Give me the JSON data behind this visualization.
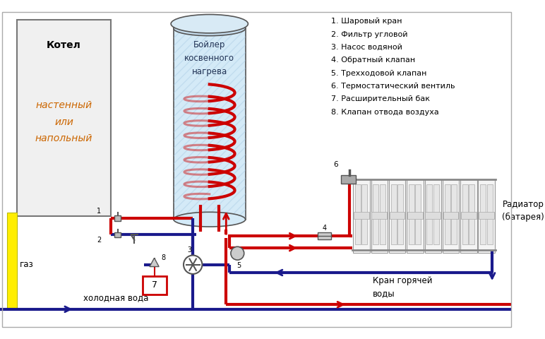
{
  "legend_items": [
    "1. Шаровый кран",
    "2. Фильтр угловой",
    "3. Насос водяной",
    "4. Обратный клапан",
    "5. Трехходовой клапан",
    "6. Термостатический вентиль",
    "7. Расширительный бак",
    "8. Клапан отвода воздуха"
  ],
  "boiler_label": "Бойлер\nкосвенного\nнагрева",
  "kotel_label": "Котел",
  "kotel_sub": "настенный\nили\nнапольный",
  "gaz_label": "газ",
  "cold_water_label": "холодная вода",
  "hot_water_label": "Кран горячей\nводы",
  "radiator_label": "Радиатор\n(батарея)",
  "bg_color": "#ffffff",
  "red": "#cc0000",
  "blue": "#1a1a8c",
  "gray": "#888888",
  "dark_gray": "#555555",
  "yellow": "#ffee00",
  "light_blue_fill": "#d4eaf7",
  "hatch_color": "#a0c4e0"
}
